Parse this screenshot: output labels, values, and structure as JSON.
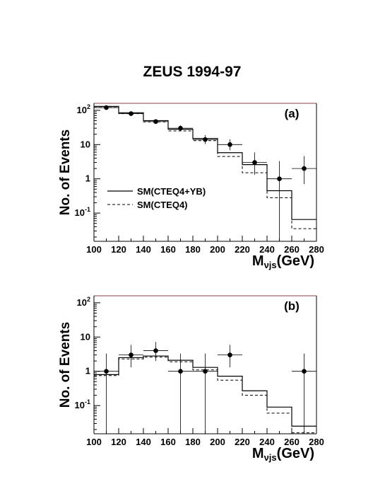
{
  "title": "ZEUS 1994-97",
  "chart_data": [
    {
      "type": "histogram",
      "panel_label": "(a)",
      "x_edges": [
        100,
        120,
        140,
        160,
        180,
        200,
        220,
        240,
        260,
        280
      ],
      "xlim": [
        100,
        280
      ],
      "xticks": [
        "100",
        "120",
        "140",
        "160",
        "180",
        "200",
        "220",
        "240",
        "260",
        "280"
      ],
      "xlabel_main": "M",
      "xlabel_sub": "νjs",
      "xlabel_unit": "(GeV)",
      "ylabel": "No. of Events",
      "yscale": "log",
      "ylim": [
        0.015,
        160
      ],
      "yticks": [
        {
          "base": "10",
          "exp": "2",
          "value": 100
        },
        {
          "base": "10",
          "exp": "",
          "value": 10
        },
        {
          "base": "1",
          "exp": "",
          "value": 1
        },
        {
          "base": "10",
          "exp": "-1",
          "value": 0.1
        }
      ],
      "series": [
        {
          "name": "SM(CTEQ4+YB)",
          "style": "solid",
          "values": [
            130,
            85,
            50,
            28,
            15,
            5.8,
            2.6,
            0.45,
            0.065
          ]
        },
        {
          "name": "SM(CTEQ4)",
          "style": "dashed",
          "values": [
            128,
            80,
            46,
            25,
            13,
            4.5,
            1.5,
            0.28,
            0.035
          ]
        }
      ],
      "points": {
        "x": [
          110,
          130,
          150,
          170,
          190,
          210,
          230,
          250,
          270
        ],
        "y": [
          120,
          80,
          47,
          30,
          14,
          10,
          3,
          1,
          2
        ],
        "yerr_low": [
          10,
          8,
          7,
          5.5,
          3.7,
          3.2,
          1.7,
          0.99,
          1.3
        ],
        "yerr_high": [
          11,
          9,
          8,
          6.5,
          4.8,
          4.2,
          2.9,
          2.3,
          2.6
        ]
      }
    },
    {
      "type": "histogram",
      "panel_label": "(b)",
      "x_edges": [
        100,
        120,
        140,
        160,
        180,
        200,
        220,
        240,
        260,
        280
      ],
      "xlim": [
        100,
        280
      ],
      "xticks": [
        "100",
        "120",
        "140",
        "160",
        "180",
        "200",
        "220",
        "240",
        "260",
        "280"
      ],
      "xlabel_main": "M",
      "xlabel_sub": "νjs",
      "xlabel_unit": "(GeV)",
      "ylabel": "No. of Events",
      "yscale": "log",
      "ylim": [
        0.015,
        160
      ],
      "yticks": [
        {
          "base": "10",
          "exp": "2",
          "value": 100
        },
        {
          "base": "10",
          "exp": "",
          "value": 10
        },
        {
          "base": "1",
          "exp": "",
          "value": 1
        },
        {
          "base": "10",
          "exp": "-1",
          "value": 0.1
        }
      ],
      "series": [
        {
          "name": "SM(CTEQ4+YB)",
          "style": "solid",
          "values": [
            0.8,
            2.5,
            2.8,
            2.1,
            1.3,
            0.72,
            0.27,
            0.09,
            0.025
          ]
        },
        {
          "name": "SM(CTEQ4)",
          "style": "dashed",
          "values": [
            0.75,
            2.3,
            2.6,
            1.9,
            1.1,
            0.55,
            0.2,
            0.06,
            0.016
          ]
        }
      ],
      "points": {
        "x": [
          110,
          130,
          150,
          170,
          190,
          210,
          270
        ],
        "y": [
          1,
          3,
          4,
          1,
          1,
          3,
          1
        ],
        "yerr_low": [
          0.99,
          1.7,
          2,
          0.99,
          0.99,
          1.7,
          0.99
        ],
        "yerr_high": [
          2.3,
          2.9,
          3.2,
          2.3,
          2.3,
          2.9,
          2.3
        ]
      }
    }
  ]
}
